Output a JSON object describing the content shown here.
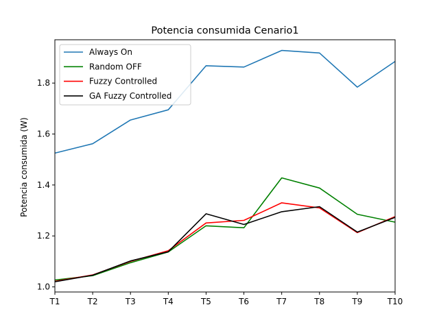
{
  "chart_data": {
    "type": "line",
    "title": "Potencia consumida Cenario1",
    "xlabel": "",
    "ylabel": "Potencia consumida (W)",
    "categories": [
      "T1",
      "T2",
      "T3",
      "T4",
      "T5",
      "T6",
      "T7",
      "T8",
      "T9",
      "T10"
    ],
    "ylim": [
      0.98,
      1.97
    ],
    "yticks": [
      1.0,
      1.2,
      1.4,
      1.6,
      1.8
    ],
    "ytick_labels": [
      "1.0",
      "1.2",
      "1.4",
      "1.6",
      "1.8"
    ],
    "grid": false,
    "legend_position": "top-left",
    "series": [
      {
        "name": "Always On",
        "color": "#1f77b4",
        "values": [
          1.525,
          1.562,
          1.655,
          1.695,
          1.868,
          1.863,
          1.928,
          1.918,
          1.784,
          1.885
        ]
      },
      {
        "name": "Random OFF",
        "color": "#008000",
        "values": [
          1.027,
          1.044,
          1.095,
          1.137,
          1.24,
          1.232,
          1.428,
          1.388,
          1.285,
          1.254
        ]
      },
      {
        "name": "Fuzzy Controlled",
        "color": "#ff0000",
        "values": [
          1.022,
          1.047,
          1.1,
          1.142,
          1.251,
          1.261,
          1.33,
          1.31,
          1.213,
          1.276
        ]
      },
      {
        "name": "GA Fuzzy Controlled",
        "color": "#000000",
        "values": [
          1.02,
          1.046,
          1.102,
          1.138,
          1.287,
          1.245,
          1.295,
          1.315,
          1.215,
          1.273
        ]
      }
    ]
  }
}
